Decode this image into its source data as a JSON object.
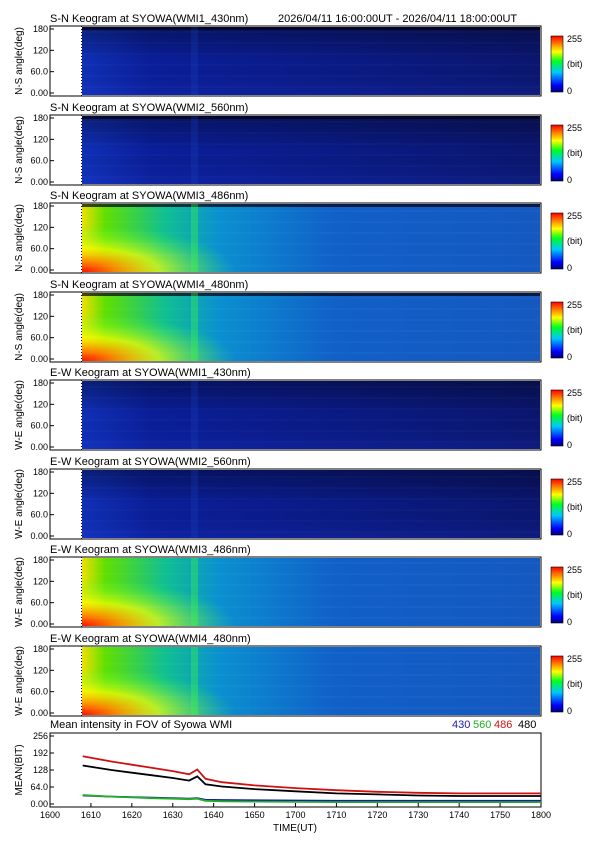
{
  "header": {
    "date_range": "2026/04/11 16:00:00UT - 2026/04/11 18:00:00UT"
  },
  "colors": {
    "series_430": "#1a1ab0",
    "series_560": "#22b022",
    "series_486": "#d01010",
    "series_480": "#000000"
  },
  "keogram_yticks": [
    "180",
    "120",
    "60.0",
    "0.00"
  ],
  "colorbar": {
    "max_label": "255",
    "unit": "(bit)",
    "min_label": "0"
  },
  "panels": [
    {
      "title": "S-N Keogram at SYOWA(WMI1_430nm)",
      "ylabel": "N-S angle(deg)",
      "style": "dark"
    },
    {
      "title": "S-N Keogram at SYOWA(WMI2_560nm)",
      "ylabel": "N-S angle(deg)",
      "style": "dark"
    },
    {
      "title": "S-N Keogram at SYOWA(WMI3_486nm)",
      "ylabel": "N-S angle(deg)",
      "style": "bright"
    },
    {
      "title": "S-N Keogram at SYOWA(WMI4_480nm)",
      "ylabel": "N-S angle(deg)",
      "style": "bright"
    },
    {
      "title": "E-W Keogram at SYOWA(WMI1_430nm)",
      "ylabel": "W-E angle(deg)",
      "style": "dark"
    },
    {
      "title": "E-W Keogram at SYOWA(WMI2_560nm)",
      "ylabel": "W-E angle(deg)",
      "style": "dark"
    },
    {
      "title": "E-W Keogram at SYOWA(WMI3_486nm)",
      "ylabel": "W-E angle(deg)",
      "style": "bright"
    },
    {
      "title": "E-W Keogram at SYOWA(WMI4_480nm)",
      "ylabel": "W-E angle(deg)",
      "style": "bright"
    }
  ],
  "chart_data": {
    "type": "line",
    "title": "Mean intensity in FOV of Syowa WMI",
    "xlabel": "TIME(UT)",
    "ylabel": "MEAN(BIT)",
    "xlim": [
      1600,
      1800
    ],
    "ylim": [
      0,
      256
    ],
    "x_ticks": [
      "1600",
      "1610",
      "1620",
      "1630",
      "1640",
      "1650",
      "1700",
      "1710",
      "1720",
      "1730",
      "1740",
      "1750",
      "1800"
    ],
    "y_ticks": [
      "256",
      "192",
      "128",
      "64.0",
      "0.00"
    ],
    "x_hhmm": [
      1608,
      1615,
      1620,
      1625,
      1630,
      1634,
      1636,
      1638,
      1642,
      1650,
      1700,
      1710,
      1720,
      1730,
      1740,
      1750,
      1800
    ],
    "series": [
      {
        "name": "430",
        "color": "#1a1ab0",
        "values": [
          32,
          28,
          26,
          24,
          22,
          20,
          22,
          16,
          15,
          14,
          13,
          12,
          12,
          12,
          12,
          12,
          12
        ]
      },
      {
        "name": "560",
        "color": "#22b022",
        "values": [
          34,
          28,
          25,
          22,
          20,
          18,
          20,
          12,
          10,
          9,
          8,
          7,
          7,
          7,
          7,
          7,
          7
        ]
      },
      {
        "name": "486",
        "color": "#d01010",
        "values": [
          180,
          160,
          148,
          136,
          124,
          112,
          130,
          95,
          82,
          70,
          60,
          52,
          46,
          42,
          40,
          40,
          40
        ]
      },
      {
        "name": "480",
        "color": "#000000",
        "values": [
          145,
          128,
          118,
          108,
          98,
          88,
          104,
          74,
          66,
          56,
          48,
          40,
          36,
          32,
          30,
          30,
          30
        ]
      }
    ]
  }
}
